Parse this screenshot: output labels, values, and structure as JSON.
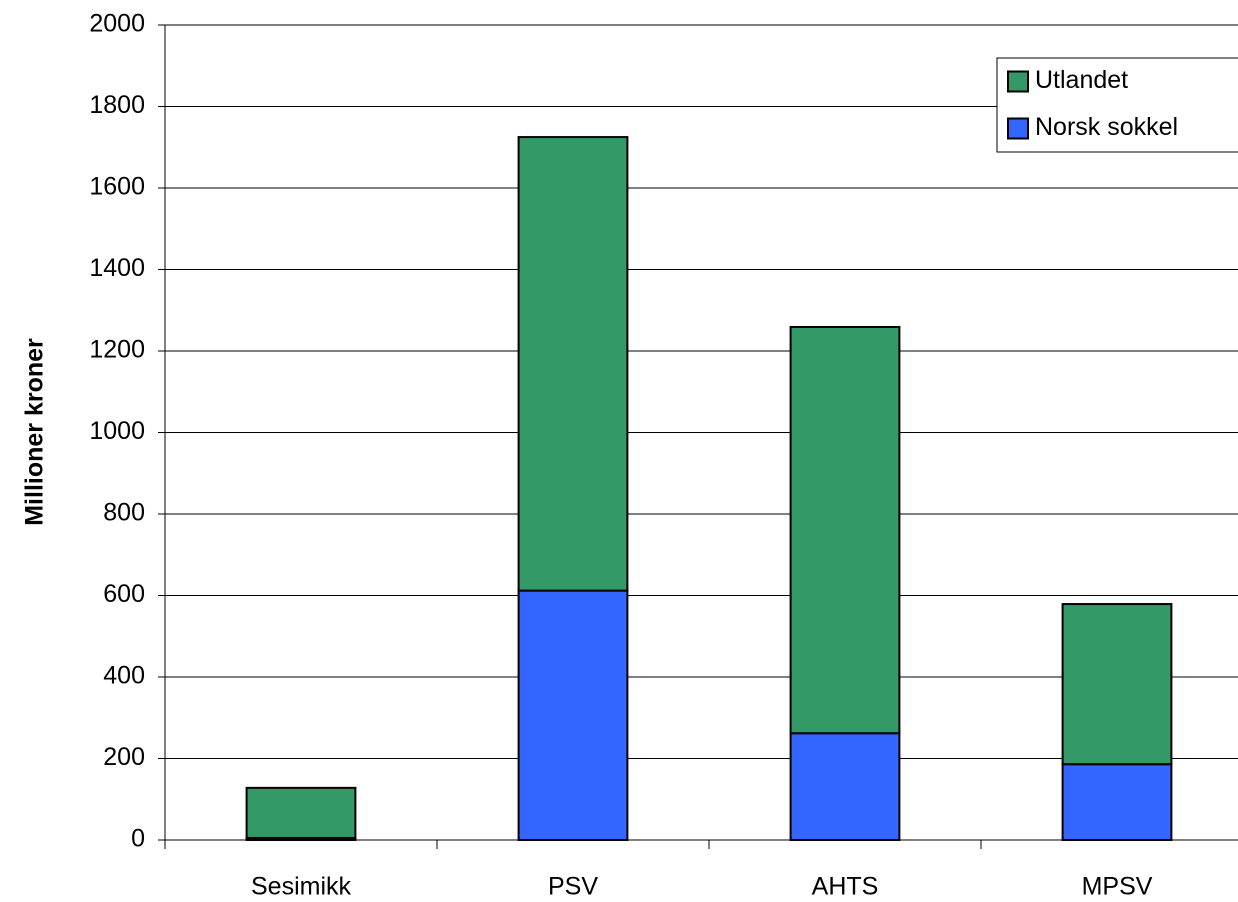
{
  "chart_data": {
    "type": "stacked_bar",
    "y_label": "Millioner kroner",
    "categories": [
      "Sesimikk",
      "PSV",
      "AHTS",
      "MPSV"
    ],
    "series": [
      {
        "name": "Norsk sokkel",
        "color": "#3366ff",
        "values": [
          5,
          612,
          262,
          186
        ]
      },
      {
        "name": "Utlandet",
        "color": "#339966",
        "values": [
          123,
          1113,
          997,
          393
        ]
      }
    ],
    "ylim": [
      0,
      2000
    ],
    "yticks": [
      0,
      200,
      400,
      600,
      800,
      1000,
      1200,
      1400,
      1600,
      1800,
      2000
    ],
    "grid": true,
    "legend": "upper right"
  }
}
